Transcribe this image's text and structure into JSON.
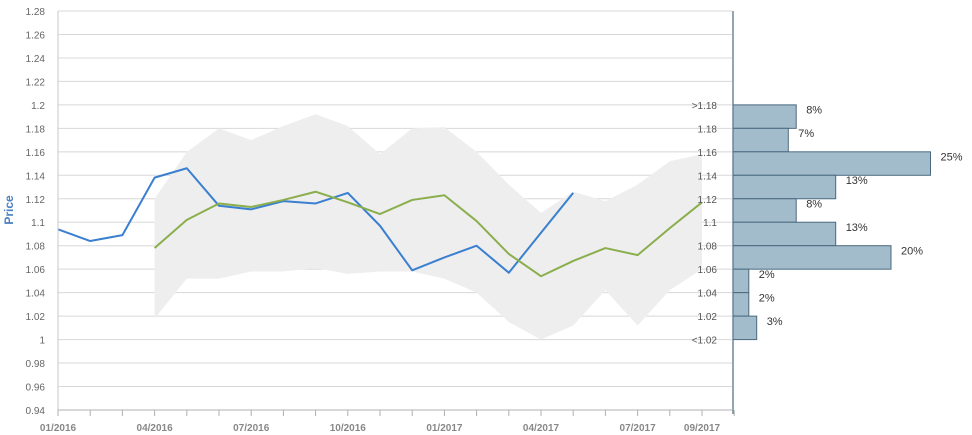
{
  "chart_data": {
    "type": "line",
    "ylabel": "Price",
    "ylim": [
      0.94,
      1.28
    ],
    "yticks": [
      "0.94",
      "0.96",
      "0.98",
      "1",
      "1.02",
      "1.04",
      "1.06",
      "1.08",
      "1.1",
      "1.12",
      "1.14",
      "1.16",
      "1.18",
      "1.2",
      "1.22",
      "1.24",
      "1.26",
      "1.28"
    ],
    "xticks": [
      "01/2016",
      "04/2016",
      "07/2016",
      "10/2016",
      "01/2017",
      "04/2017",
      "07/2017",
      "09/2017"
    ],
    "grid": true,
    "series": [
      {
        "color": "#3a7fd0",
        "x": [
          "01/2016",
          "02/2016",
          "03/2016",
          "04/2016",
          "05/2016",
          "06/2016",
          "07/2016",
          "08/2016",
          "09/2016",
          "10/2016",
          "11/2016",
          "12/2016",
          "01/2017",
          "02/2017",
          "03/2017",
          "04/2017",
          "05/2017"
        ],
        "values": [
          1.094,
          1.084,
          1.089,
          1.138,
          1.146,
          1.114,
          1.111,
          1.118,
          1.116,
          1.125,
          1.097,
          1.059,
          1.07,
          1.08,
          1.057,
          1.091,
          1.125
        ]
      },
      {
        "color": "#8aae4c",
        "x": [
          "04/2016",
          "05/2016",
          "06/2016",
          "07/2016",
          "08/2016",
          "09/2016",
          "10/2016",
          "11/2016",
          "12/2016",
          "01/2017",
          "02/2017",
          "03/2017",
          "04/2017",
          "05/2017",
          "06/2017",
          "07/2017",
          "08/2017",
          "09/2017"
        ],
        "values": [
          1.078,
          1.102,
          1.116,
          1.113,
          1.119,
          1.126,
          1.117,
          1.107,
          1.119,
          1.123,
          1.101,
          1.073,
          1.054,
          1.067,
          1.078,
          1.072,
          1.095,
          1.117
        ]
      }
    ],
    "band": {
      "color": "#eeeeee",
      "x": [
        "04/2016",
        "05/2016",
        "06/2016",
        "07/2016",
        "08/2016",
        "09/2016",
        "10/2016",
        "11/2016",
        "12/2016",
        "01/2017",
        "02/2017",
        "03/2017",
        "04/2017",
        "05/2017",
        "06/2017",
        "07/2017",
        "08/2017",
        "09/2017"
      ],
      "upper": [
        1.12,
        1.16,
        1.18,
        1.17,
        1.182,
        1.192,
        1.182,
        1.158,
        1.18,
        1.181,
        1.16,
        1.132,
        1.108,
        1.126,
        1.118,
        1.132,
        1.152,
        1.158
      ],
      "lower": [
        1.018,
        1.052,
        1.052,
        1.058,
        1.058,
        1.061,
        1.056,
        1.058,
        1.058,
        1.052,
        1.04,
        1.015,
        1.0,
        1.012,
        1.042,
        1.012,
        1.042,
        1.06
      ]
    },
    "histogram": {
      "color": "#a3bccb",
      "border": "#4a6a80",
      "bins": [
        {
          "label": ">1.18",
          "percent": 8
        },
        {
          "label": "1.18",
          "percent": 7
        },
        {
          "label": "1.16",
          "percent": 25
        },
        {
          "label": "1.14",
          "percent": 13
        },
        {
          "label": "1.12",
          "percent": 8
        },
        {
          "label": "1.1",
          "percent": 13
        },
        {
          "label": "1.08",
          "percent": 20
        },
        {
          "label": "1.06",
          "percent": 2
        },
        {
          "label": "1.04",
          "percent": 2
        },
        {
          "label": "1.02",
          "percent": 3
        },
        {
          "label": "<1.02",
          "percent": 0
        }
      ]
    }
  }
}
